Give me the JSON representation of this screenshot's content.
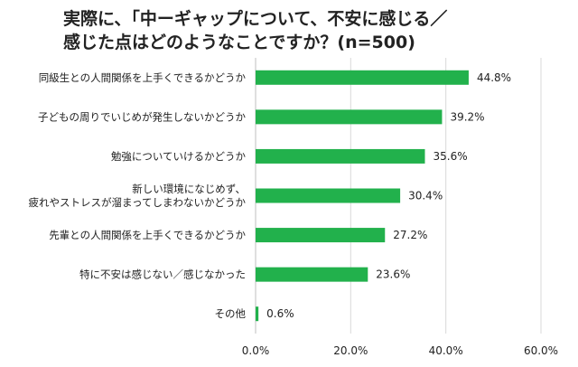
{
  "chart_data": {
    "type": "bar",
    "orientation": "horizontal",
    "title_lines": [
      "実際に、「中ーギャップについて、不安に感じる／",
      "感じた点はどのようなことですか？(n=500)"
    ],
    "categories": [
      [
        "同級生との人間関係を上手くできるかどうか"
      ],
      [
        "子どもの周りでいじめが発生しないかどうか"
      ],
      [
        "勉強についていけるかどうか"
      ],
      [
        "新しい環境になじめず、",
        "疲れやストレスが溜まってしまわないかどうか"
      ],
      [
        "先輩との人間関係を上手くできるかどうか"
      ],
      [
        "特に不安は感じない／感じなかった"
      ],
      [
        "その他"
      ]
    ],
    "values": [
      44.8,
      39.2,
      35.6,
      30.4,
      27.2,
      23.6,
      0.6
    ],
    "value_labels": [
      "44.8%",
      "39.2%",
      "35.6%",
      "30.4%",
      "27.2%",
      "23.6%",
      "0.6%"
    ],
    "xlim": [
      0,
      60
    ],
    "xticks": [
      0,
      20,
      40,
      60
    ],
    "xtick_labels": [
      "0.0%",
      "20.0%",
      "40.0%",
      "60.0%"
    ],
    "bar_color": "#22b14c",
    "grid_color": "#d9d9d9",
    "grid": true
  }
}
